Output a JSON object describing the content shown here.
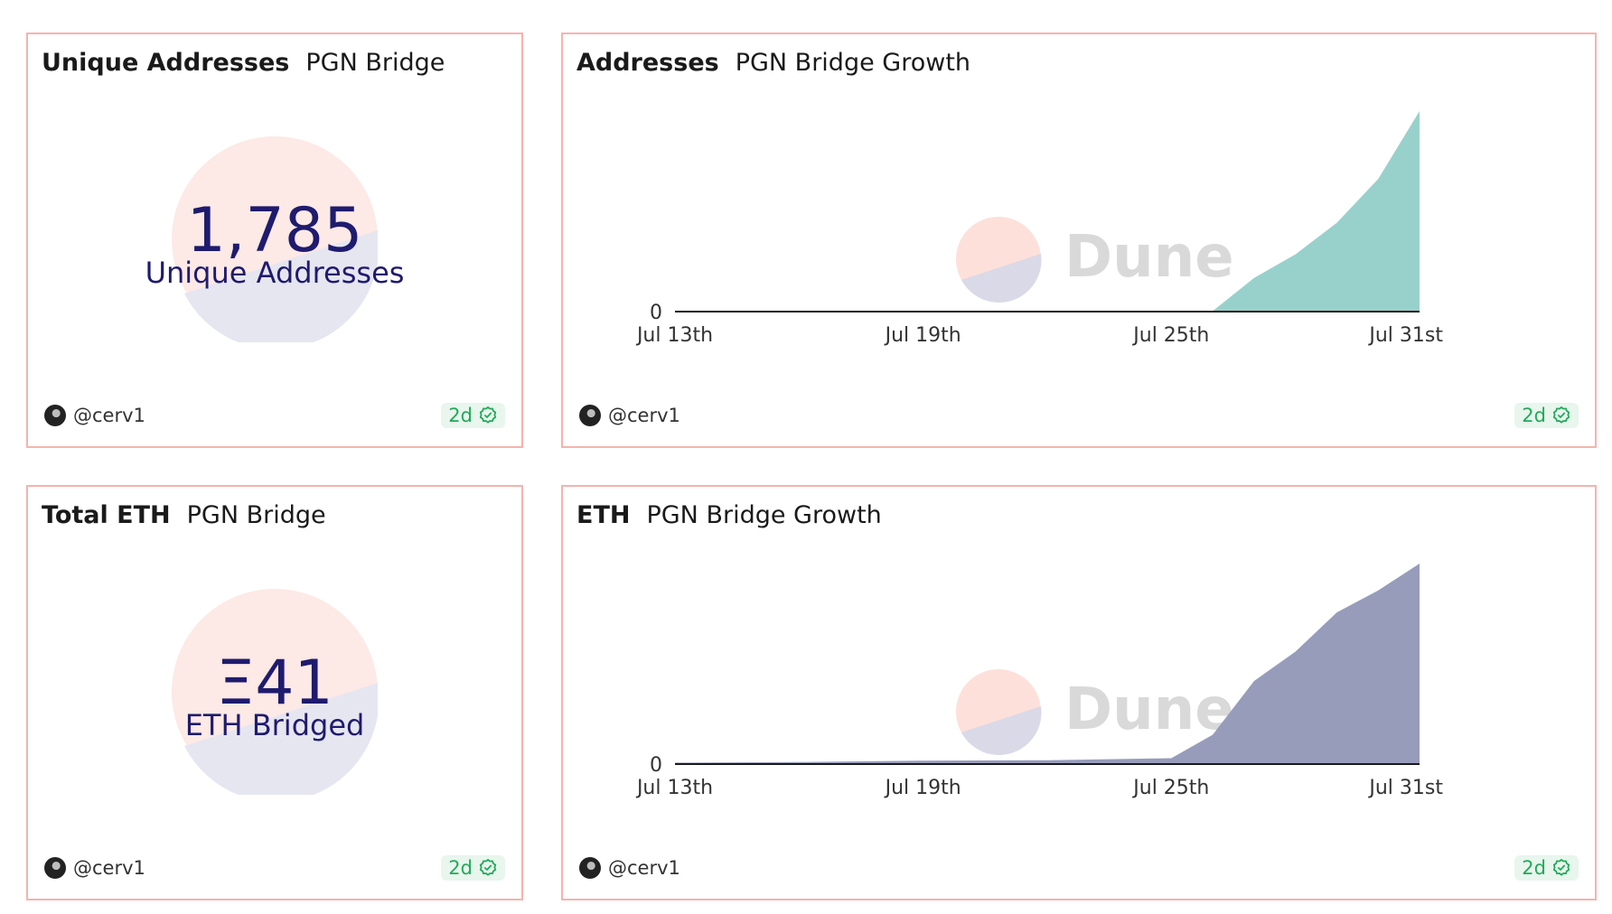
{
  "panels": {
    "unique_addresses": {
      "title_bold": "Unique Addresses",
      "title_rest": "PGN Bridge",
      "value": "1,785",
      "label": "Unique Addresses",
      "author": "@cerv1",
      "badge": "2d"
    },
    "addresses_growth": {
      "title_bold": "Addresses",
      "title_rest": "PGN Bridge Growth",
      "author": "@cerv1",
      "badge": "2d",
      "watermark": "Dune"
    },
    "total_eth": {
      "title_bold": "Total ETH",
      "title_rest": "PGN Bridge",
      "value": "Ξ41",
      "label": "ETH Bridged",
      "author": "@cerv1",
      "badge": "2d"
    },
    "eth_growth": {
      "title_bold": "ETH",
      "title_rest": "PGN Bridge Growth",
      "author": "@cerv1",
      "badge": "2d",
      "watermark": "Dune"
    }
  },
  "colors": {
    "border": "#f6b3ad",
    "counter_text": "#1f1b6e",
    "addresses_fill": "#98d1cb",
    "eth_fill": "#979cbb",
    "badge_text": "#22a95a",
    "watermark_text": "#d9d9d9"
  },
  "icons": {
    "badge_icon": "verified-check-icon",
    "avatar_icon": "avatar-icon"
  },
  "chart_data": [
    {
      "type": "area",
      "x": [
        "Jul 13th",
        "Jul 16th",
        "Jul 19th",
        "Jul 22nd",
        "Jul 25th",
        "Jul 26th",
        "Jul 27th",
        "Jul 28th",
        "Jul 29th",
        "Jul 30th",
        "Jul 31st"
      ],
      "values": [
        0,
        0,
        0,
        0,
        0,
        5,
        300,
        510,
        790,
        1180,
        1785
      ],
      "x_ticks": [
        "Jul 13th",
        "Jul 19th",
        "Jul 25th",
        "Jul 31st"
      ],
      "y_ticks": [
        "0"
      ],
      "ylim": [
        0,
        1785
      ]
    },
    {
      "type": "area",
      "x": [
        "Jul 13th",
        "Jul 16th",
        "Jul 19th",
        "Jul 22nd",
        "Jul 25th",
        "Jul 26th",
        "Jul 27th",
        "Jul 28th",
        "Jul 29th",
        "Jul 30th",
        "Jul 31st"
      ],
      "values": [
        0.3,
        0.4,
        0.7,
        0.8,
        1.2,
        6.0,
        17.0,
        23.0,
        31.0,
        35.5,
        41.0
      ],
      "x_ticks": [
        "Jul 13th",
        "Jul 19th",
        "Jul 25th",
        "Jul 31st"
      ],
      "y_ticks": [
        "0"
      ],
      "ylim": [
        0,
        41
      ]
    }
  ]
}
